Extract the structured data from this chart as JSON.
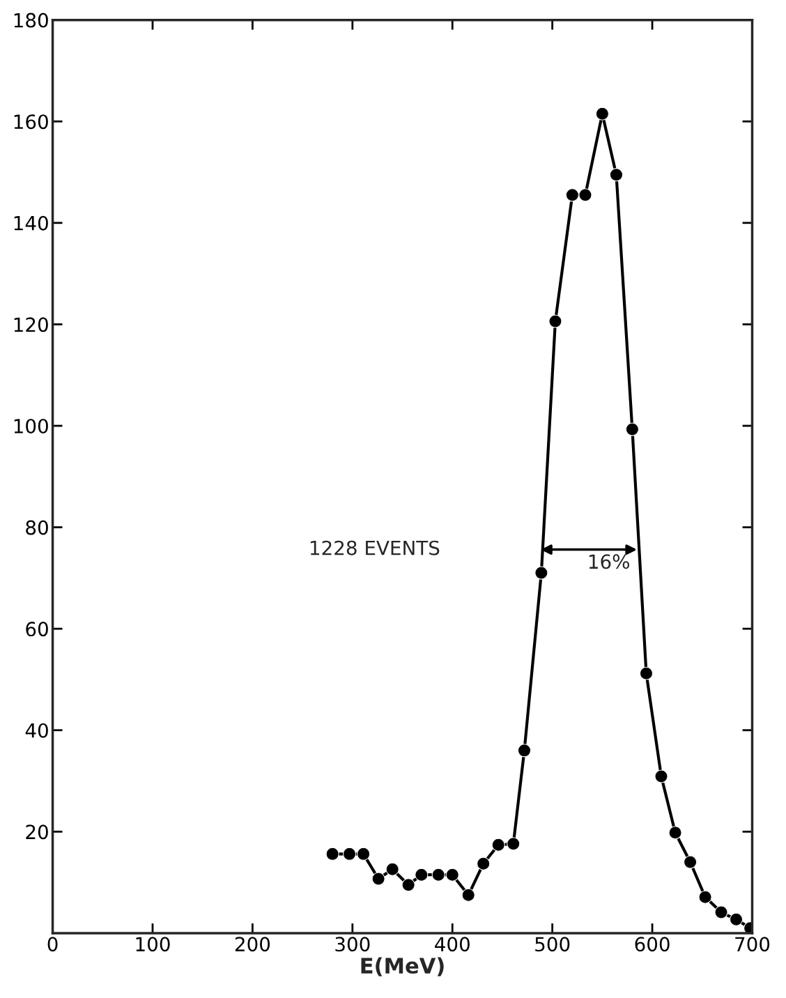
{
  "chart_data": {
    "type": "line",
    "xlabel": "E(MeV)",
    "x": [
      280,
      297,
      311,
      326,
      340,
      356,
      369,
      386,
      400,
      416,
      431,
      446,
      461,
      472,
      489,
      503,
      520,
      533,
      550,
      564,
      580,
      594,
      609,
      623,
      638,
      653,
      669,
      684,
      698
    ],
    "series": [
      {
        "color": "#000000",
        "values": [
          15.6,
          15.6,
          15.6,
          10.7,
          12.6,
          9.5,
          11.5,
          11.5,
          11.5,
          7.5,
          13.7,
          17.4,
          17.6,
          36,
          71,
          120.6,
          145.5,
          145.5,
          161.5,
          149.5,
          99.3,
          51.2,
          30.9,
          19.8,
          14,
          7.1,
          4.1,
          2.7,
          1.0
        ]
      }
    ],
    "xlim": [
      0,
      700
    ],
    "xticks": [
      0,
      100,
      200,
      300,
      400,
      500,
      600,
      700
    ],
    "ylim": [
      0,
      180
    ],
    "yticks": [
      20,
      40,
      60,
      80,
      100,
      120,
      140,
      160,
      180
    ],
    "annotations": [
      "1228 EVENTS",
      "16%"
    ],
    "marker": "circle",
    "line_style": "solid",
    "grid": false,
    "legend": false
  }
}
